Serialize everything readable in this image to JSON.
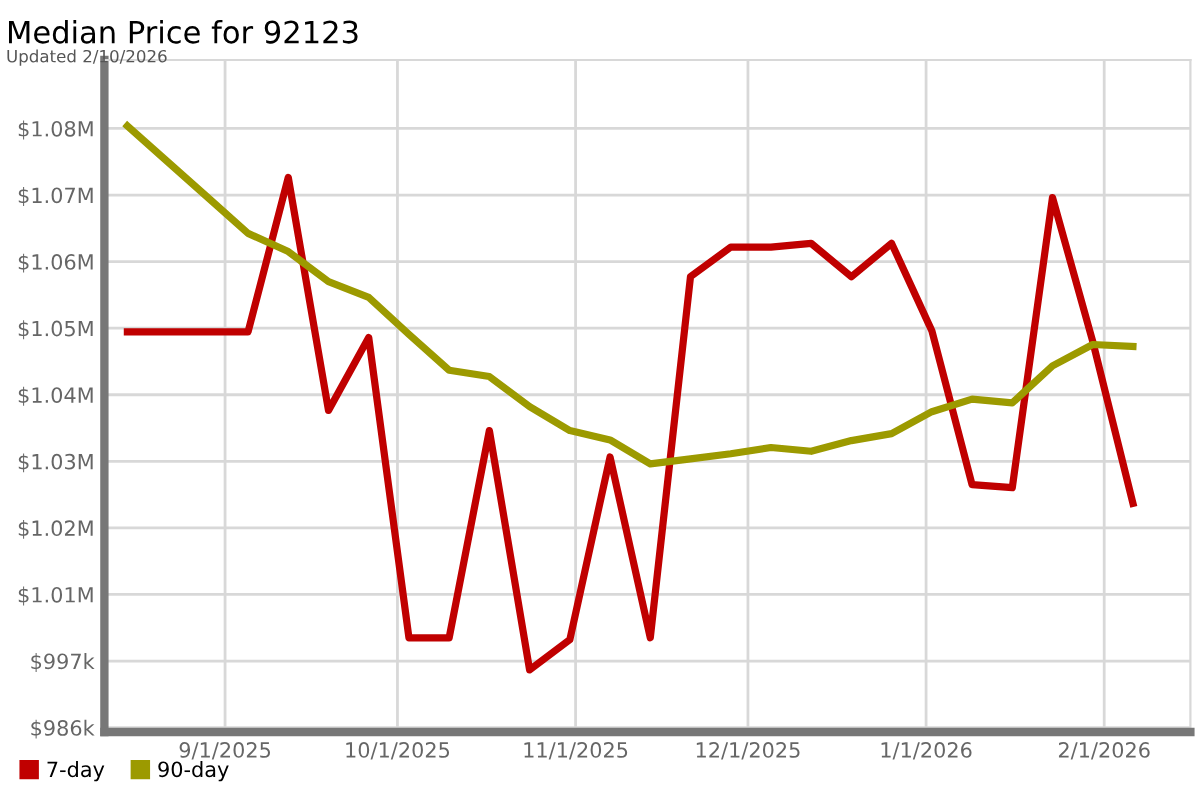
{
  "chart_data": {
    "type": "line",
    "title": "Median Price for 92123",
    "subtitle": "Updated 2/10/2026",
    "x": [
      "2025-08-15",
      "2025-08-22",
      "2025-08-29",
      "2025-09-05",
      "2025-09-12",
      "2025-09-19",
      "2025-09-26",
      "2025-10-03",
      "2025-10-10",
      "2025-10-17",
      "2025-10-24",
      "2025-10-31",
      "2025-11-07",
      "2025-11-14",
      "2025-11-21",
      "2025-11-28",
      "2025-12-05",
      "2025-12-12",
      "2025-12-19",
      "2025-12-26",
      "2026-01-02",
      "2026-01-09",
      "2026-01-16",
      "2026-01-23",
      "2026-01-30",
      "2026-02-06"
    ],
    "series": [
      {
        "name": "7-day",
        "color": "#c00000",
        "values": [
          1049000,
          1049000,
          1049000,
          1049000,
          1073600,
          1036500,
          1048100,
          1000300,
          1000300,
          1033300,
          995200,
          1000000,
          1029100,
          1000300,
          1057800,
          1062500,
          1062500,
          1063100,
          1057800,
          1063100,
          1049200,
          1024700,
          1024200,
          1070400,
          1047500,
          1021700
        ]
      },
      {
        "name": "90-day",
        "color": "#9c9a00",
        "values": [
          1081800,
          1076100,
          1070400,
          1064700,
          1061800,
          1057000,
          1054500,
          1048600,
          1042900,
          1041900,
          1037100,
          1033300,
          1031800,
          1028000,
          1028800,
          1029600,
          1030600,
          1030000,
          1031700,
          1032800,
          1036300,
          1038300,
          1037700,
          1043600,
          1047000,
          1046700
        ]
      }
    ],
    "xlim": [
      "2025-08-11",
      "2026-02-16"
    ],
    "xticks": [
      {
        "value": "2025-09-01",
        "label": "9/1/2025"
      },
      {
        "value": "2025-10-01",
        "label": "10/1/2025"
      },
      {
        "value": "2025-11-01",
        "label": "11/1/2025"
      },
      {
        "value": "2025-12-01",
        "label": "12/1/2025"
      },
      {
        "value": "2026-01-01",
        "label": "1/1/2026"
      },
      {
        "value": "2026-02-01",
        "label": "2/1/2026"
      }
    ],
    "ylim": [
      985300,
      1092300
    ],
    "yticks": [
      {
        "value": 986000,
        "label": "$986k"
      },
      {
        "value": 996600,
        "label": "$997k"
      },
      {
        "value": 1007200,
        "label": "$1.01M"
      },
      {
        "value": 1017800,
        "label": "$1.02M"
      },
      {
        "value": 1028400,
        "label": "$1.03M"
      },
      {
        "value": 1039000,
        "label": "$1.04M"
      },
      {
        "value": 1049600,
        "label": "$1.05M"
      },
      {
        "value": 1060200,
        "label": "$1.06M"
      },
      {
        "value": 1070800,
        "label": "$1.07M"
      },
      {
        "value": 1081400,
        "label": "$1.08M"
      }
    ],
    "grid": true,
    "legend": "bottom left",
    "marker": "none",
    "line_style": "solid"
  }
}
